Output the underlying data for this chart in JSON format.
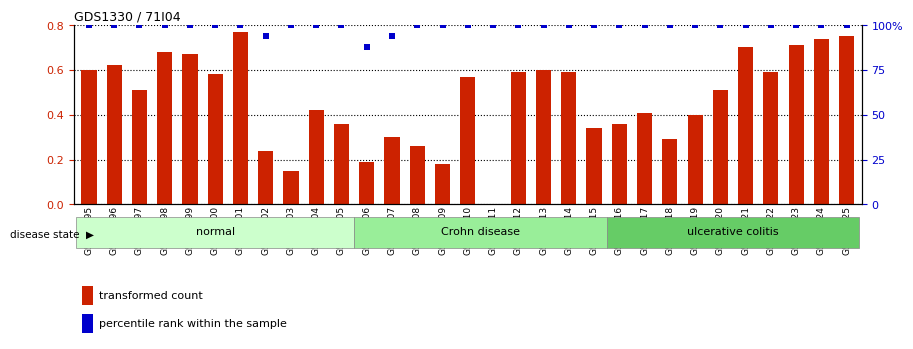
{
  "title": "GDS1330 / 71I04",
  "samples": [
    "GSM29595",
    "GSM29596",
    "GSM29597",
    "GSM29598",
    "GSM29599",
    "GSM29600",
    "GSM29601",
    "GSM29602",
    "GSM29603",
    "GSM29604",
    "GSM29605",
    "GSM29606",
    "GSM29607",
    "GSM29608",
    "GSM29609",
    "GSM29610",
    "GSM29611",
    "GSM29612",
    "GSM29613",
    "GSM29614",
    "GSM29615",
    "GSM29616",
    "GSM29617",
    "GSM29618",
    "GSM29619",
    "GSM29620",
    "GSM29621",
    "GSM29622",
    "GSM29623",
    "GSM29624",
    "GSM29625"
  ],
  "bar_values": [
    0.6,
    0.62,
    0.51,
    0.68,
    0.67,
    0.58,
    0.77,
    0.24,
    0.15,
    0.42,
    0.36,
    0.19,
    0.3,
    0.26,
    0.18,
    0.57,
    0.0,
    0.59,
    0.6,
    0.59,
    0.34,
    0.36,
    0.41,
    0.29,
    0.4,
    0.51,
    0.7,
    0.59,
    0.71,
    0.74,
    0.75
  ],
  "blue_dot_values": [
    0.8,
    0.8,
    0.8,
    0.8,
    0.8,
    0.8,
    0.8,
    0.75,
    0.8,
    0.8,
    0.8,
    0.7,
    0.75,
    0.8,
    0.8,
    0.8,
    0.8,
    0.8,
    0.8,
    0.8,
    0.8,
    0.8,
    0.8,
    0.8,
    0.8,
    0.8,
    0.8,
    0.8,
    0.8,
    0.8,
    0.8
  ],
  "groups": [
    {
      "label": "normal",
      "start": 0,
      "end": 10,
      "color": "#ccffcc"
    },
    {
      "label": "Crohn disease",
      "start": 11,
      "end": 20,
      "color": "#99ee99"
    },
    {
      "label": "ulcerative colitis",
      "start": 21,
      "end": 30,
      "color": "#66cc66"
    }
  ],
  "bar_color": "#cc2200",
  "dot_color": "#0000cc",
  "left_yticks": [
    0,
    0.2,
    0.4,
    0.6,
    0.8
  ],
  "right_ytick_labels": [
    "0",
    "25",
    "50",
    "75",
    "100%"
  ],
  "left_ylabel_color": "#cc2200",
  "right_ylabel_color": "#0000cc",
  "background_color": "#ffffff",
  "legend_items": [
    {
      "label": "transformed count",
      "color": "#cc2200"
    },
    {
      "label": "percentile rank within the sample",
      "color": "#0000cc"
    }
  ]
}
